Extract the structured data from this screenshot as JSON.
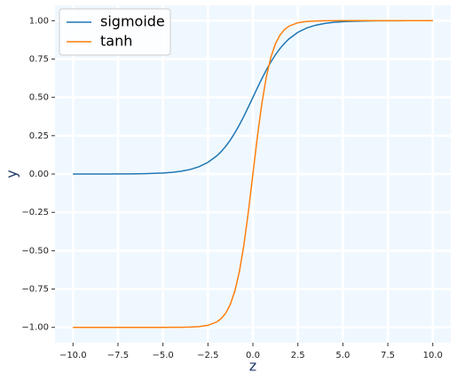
{
  "chart_data": {
    "type": "line",
    "x_label": "z",
    "y_label": "y",
    "x": [
      -10,
      -9.5,
      -9,
      -8.5,
      -8,
      -7.5,
      -7,
      -6.5,
      -6,
      -5.5,
      -5,
      -4.5,
      -4,
      -3.5,
      -3,
      -2.5,
      -2,
      -1.75,
      -1.5,
      -1.25,
      -1,
      -0.75,
      -0.5,
      -0.25,
      0,
      0.25,
      0.5,
      0.75,
      1,
      1.25,
      1.5,
      1.75,
      2,
      2.5,
      3,
      3.5,
      4,
      4.5,
      5,
      5.5,
      6,
      6.5,
      7,
      7.5,
      8,
      8.5,
      9,
      9.5,
      10
    ],
    "series": [
      {
        "name": "sigmoide",
        "color": "#1f77b4",
        "values": [
          5e-05,
          7e-05,
          0.00012,
          0.0002,
          0.00034,
          0.00055,
          0.00091,
          0.0015,
          0.00247,
          0.00407,
          0.00669,
          0.01099,
          0.01799,
          0.02931,
          0.04743,
          0.07586,
          0.1192,
          0.14805,
          0.18243,
          0.2227,
          0.26894,
          0.32082,
          0.37754,
          0.43782,
          0.5,
          0.56218,
          0.62246,
          0.67918,
          0.73106,
          0.7773,
          0.81757,
          0.85195,
          0.8808,
          0.92414,
          0.95257,
          0.97069,
          0.98201,
          0.98901,
          0.99331,
          0.99593,
          0.99753,
          0.9985,
          0.99909,
          0.99945,
          0.99966,
          0.9998,
          0.99988,
          0.99993,
          0.99995
        ]
      },
      {
        "name": "tanh",
        "color": "#ff7f0e",
        "values": [
          -1,
          -1,
          -1,
          -1,
          -1,
          -1,
          -1,
          -1,
          -0.99999,
          -0.99997,
          -0.99991,
          -0.99975,
          -0.99933,
          -0.99818,
          -0.99505,
          -0.98661,
          -0.96403,
          -0.94138,
          -0.90515,
          -0.84828,
          -0.76159,
          -0.63515,
          -0.46212,
          -0.24492,
          0,
          0.24492,
          0.46212,
          0.63515,
          0.76159,
          0.84828,
          0.90515,
          0.94138,
          0.96403,
          0.98661,
          0.99505,
          0.99818,
          0.99933,
          0.99975,
          0.99991,
          0.99997,
          0.99999,
          1,
          1,
          1,
          1,
          1,
          1,
          1,
          1
        ]
      }
    ],
    "xlim": [
      -11,
      11
    ],
    "ylim": [
      -1.1,
      1.1
    ],
    "xticks": [
      {
        "value": -10,
        "label": "−10.0"
      },
      {
        "value": -7.5,
        "label": "−7.5"
      },
      {
        "value": -5,
        "label": "−5.0"
      },
      {
        "value": -2.5,
        "label": "−2.5"
      },
      {
        "value": 0,
        "label": "0.0"
      },
      {
        "value": 2.5,
        "label": "2.5"
      },
      {
        "value": 5,
        "label": "5.0"
      },
      {
        "value": 7.5,
        "label": "7.5"
      },
      {
        "value": 10,
        "label": "10.0"
      }
    ],
    "yticks": [
      {
        "value": -1,
        "label": "−1.00"
      },
      {
        "value": -0.75,
        "label": "−0.75"
      },
      {
        "value": -0.5,
        "label": "−0.50"
      },
      {
        "value": -0.25,
        "label": "−0.25"
      },
      {
        "value": 0,
        "label": "0.00"
      },
      {
        "value": 0.25,
        "label": "0.25"
      },
      {
        "value": 0.5,
        "label": "0.50"
      },
      {
        "value": 0.75,
        "label": "0.75"
      },
      {
        "value": 1,
        "label": "1.00"
      }
    ],
    "grid": true,
    "legend": "upper left"
  }
}
